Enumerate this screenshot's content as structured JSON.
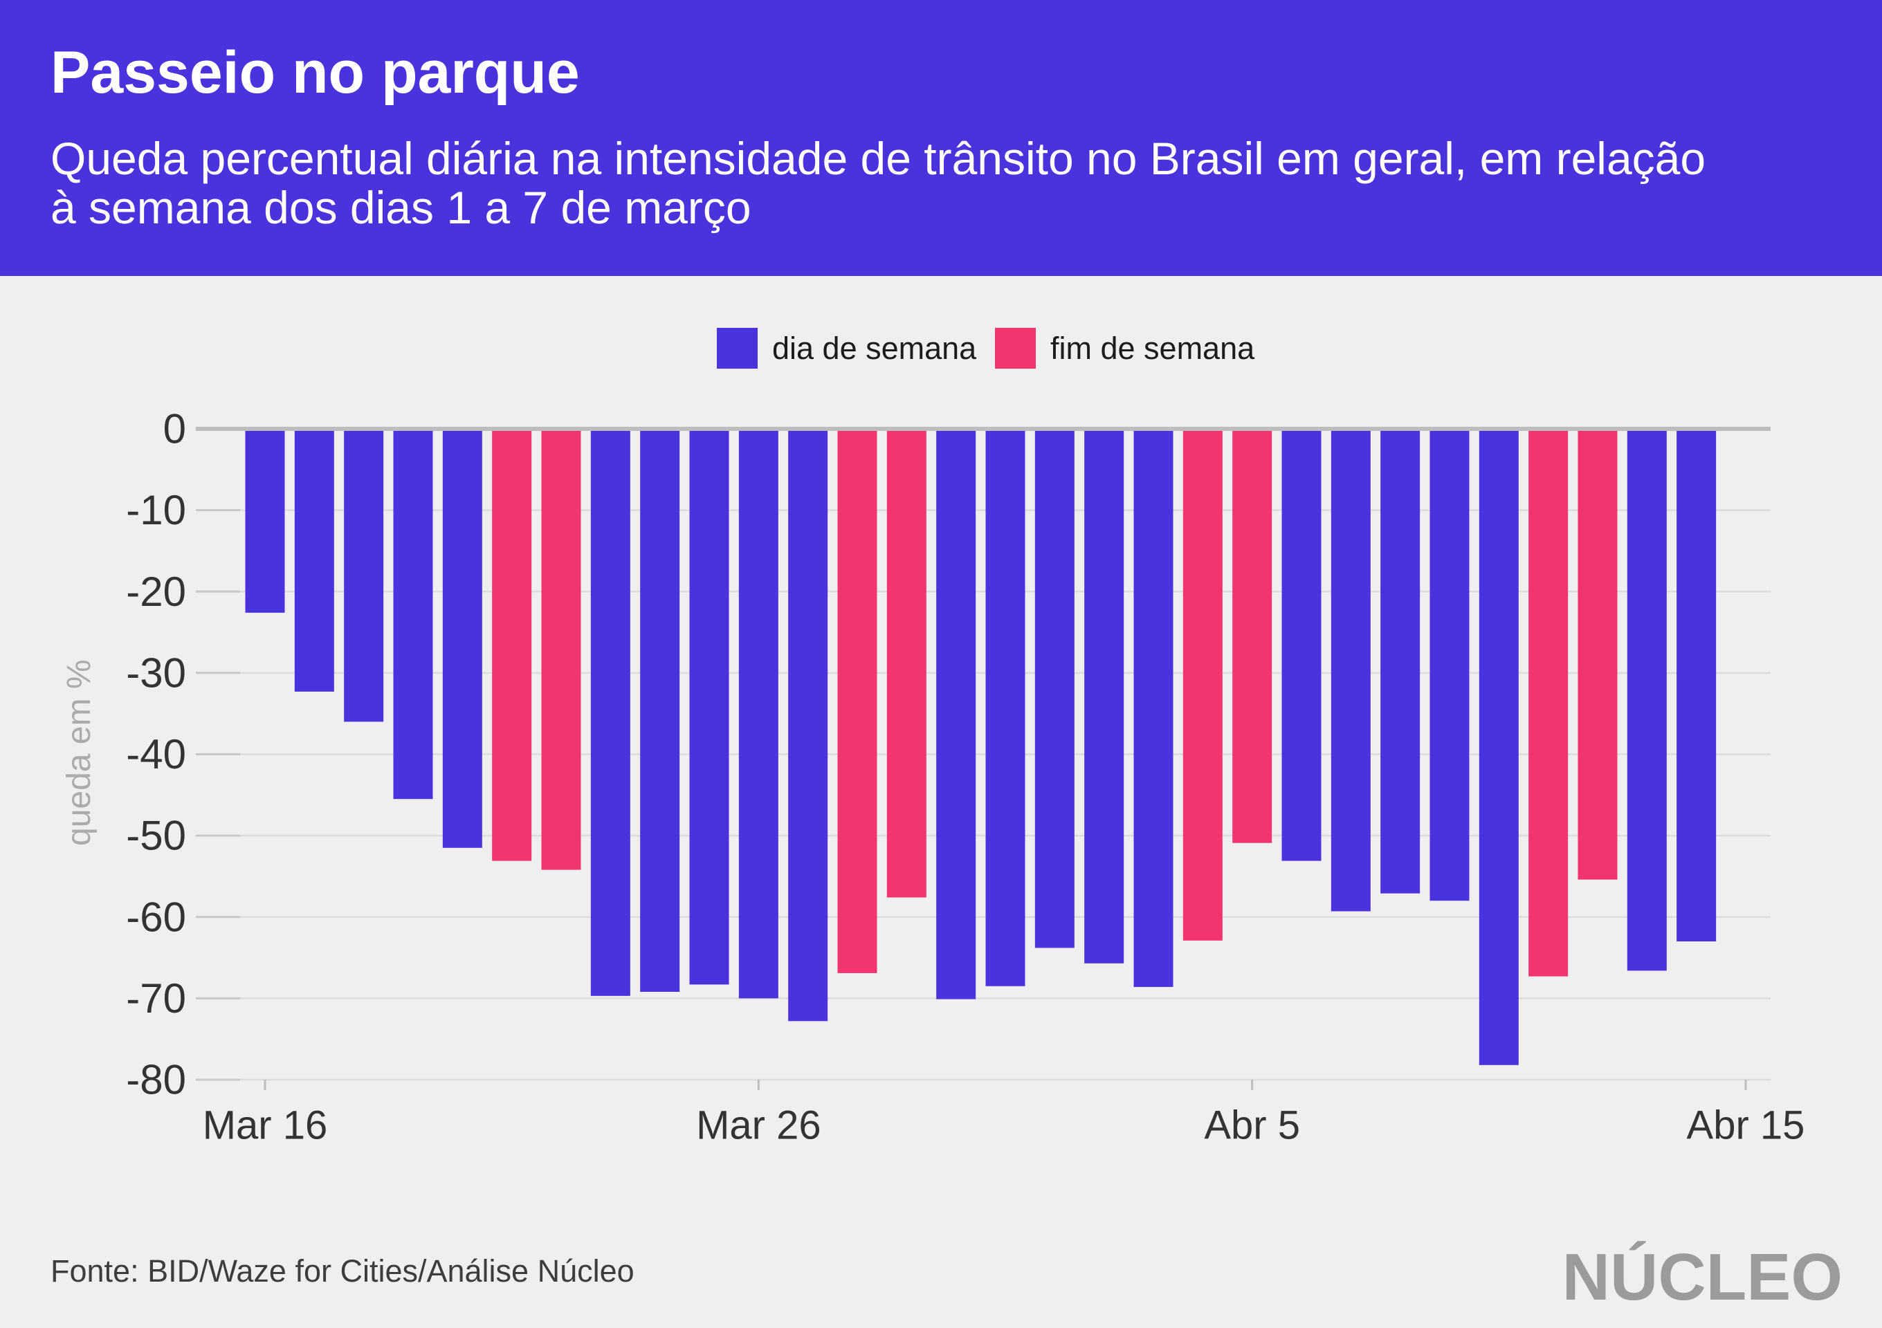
{
  "colors": {
    "header_background": "#4A32DD",
    "page_background": "#EFEFEF"
  },
  "chart_data": {
    "type": "bar",
    "title": "Passeio no parque",
    "subtitle_lines": [
      "Queda percentual diária na intensidade de trânsito no Brasil em geral, em relação",
      "à semana dos dias 1 a 7 de março"
    ],
    "xlabel": "",
    "ylabel": "queda em %",
    "ylim": [
      -80,
      0
    ],
    "y_ticks": [
      0,
      -10,
      -20,
      -30,
      -40,
      -50,
      -60,
      -70,
      -80
    ],
    "x_ticks": [
      "Mar 16",
      "Mar 26",
      "Abr 5",
      "Abr 15"
    ],
    "grid": true,
    "legend_position": "top-center",
    "categories": [
      "Mar 16",
      "Mar 17",
      "Mar 18",
      "Mar 19",
      "Mar 20",
      "Mar 21",
      "Mar 22",
      "Mar 23",
      "Mar 24",
      "Mar 25",
      "Mar 26",
      "Mar 27",
      "Mar 28",
      "Mar 29",
      "Mar 30",
      "Mar 31",
      "Abr 1",
      "Abr 2",
      "Abr 3",
      "Abr 4",
      "Abr 5",
      "Abr 6",
      "Abr 7",
      "Abr 8",
      "Abr 9",
      "Abr 10",
      "Abr 11",
      "Abr 12",
      "Abr 13",
      "Abr 14"
    ],
    "series": [
      {
        "name": "dia de semana",
        "color": "#4A32DD",
        "values": [
          -22.6,
          -32.3,
          -36.0,
          -45.5,
          -51.5,
          null,
          null,
          -69.7,
          -69.2,
          -68.3,
          -70.0,
          -72.8,
          null,
          null,
          -70.1,
          -68.5,
          -63.8,
          -65.7,
          -68.6,
          null,
          null,
          -53.1,
          -59.3,
          -57.1,
          -58.0,
          -78.2,
          null,
          null,
          -66.6,
          -63.0
        ]
      },
      {
        "name": "fim de semana",
        "color": "#F2346F",
        "values": [
          null,
          null,
          null,
          null,
          null,
          -53.1,
          -54.2,
          null,
          null,
          null,
          null,
          null,
          -66.9,
          -57.6,
          null,
          null,
          null,
          null,
          null,
          -62.9,
          -50.9,
          null,
          null,
          null,
          null,
          null,
          -67.3,
          -55.4,
          null,
          null
        ]
      }
    ]
  },
  "footer": {
    "source": "Fonte: BID/Waze for Cities/Análise Núcleo",
    "logo": "NÚCLEO"
  }
}
